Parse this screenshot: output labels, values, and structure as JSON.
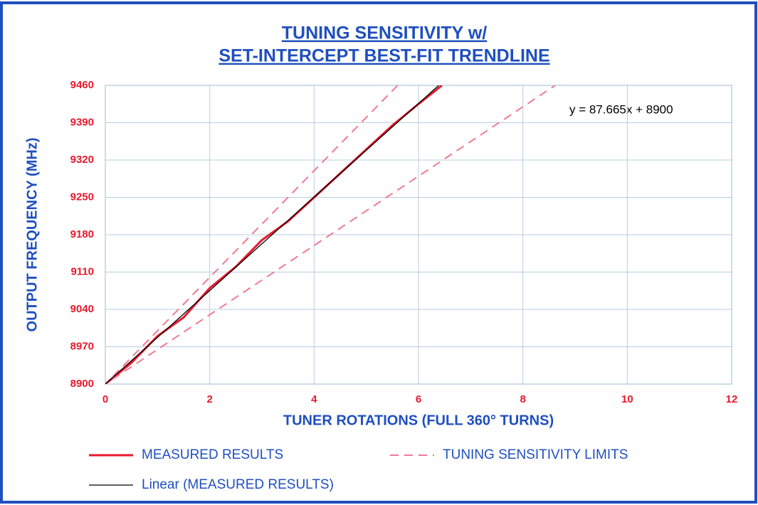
{
  "chart_data": {
    "type": "line",
    "title": [
      "TUNING SENSITIVITY w/",
      "SET-INTERCEPT BEST-FIT TRENDLINE"
    ],
    "x_label": "TUNER ROTATIONS (FULL 360° TURNS)",
    "y_label": "OUTPUT FREQUENCY (MHz)",
    "annotation": "y = 87.665x + 8900",
    "xlim": [
      0,
      12
    ],
    "xticks": [
      0,
      2,
      4,
      6,
      8,
      10,
      12
    ],
    "ylim": [
      8900,
      9460
    ],
    "yticks": [
      8900,
      8970,
      9040,
      9110,
      9180,
      9250,
      9320,
      9390,
      9460
    ],
    "grid": true,
    "series": [
      {
        "name": "MEASURED RESULTS",
        "color": "#e8182c",
        "dash": false,
        "width": 3,
        "x": [
          0,
          0.5,
          1,
          1.5,
          2,
          2.5,
          3,
          3.5,
          4,
          4.5,
          5,
          5.5,
          6,
          6.45
        ],
        "values": [
          8900,
          8940,
          8990,
          9025,
          9080,
          9120,
          9170,
          9205,
          9250,
          9295,
          9340,
          9385,
          9425,
          9460
        ]
      },
      {
        "name": "TUNING SENSITIVITY LIMITS",
        "color": "#f07a96",
        "dash": true,
        "width": 2,
        "x": [
          5.6,
          0,
          8.62
        ],
        "values": [
          9460,
          8900,
          9460
        ]
      },
      {
        "name": "Linear (MEASURED RESULTS)",
        "color": "#000000",
        "dash": false,
        "width": 1.3,
        "x": [
          0,
          6.388
        ],
        "values": [
          8900,
          9460
        ]
      }
    ]
  }
}
